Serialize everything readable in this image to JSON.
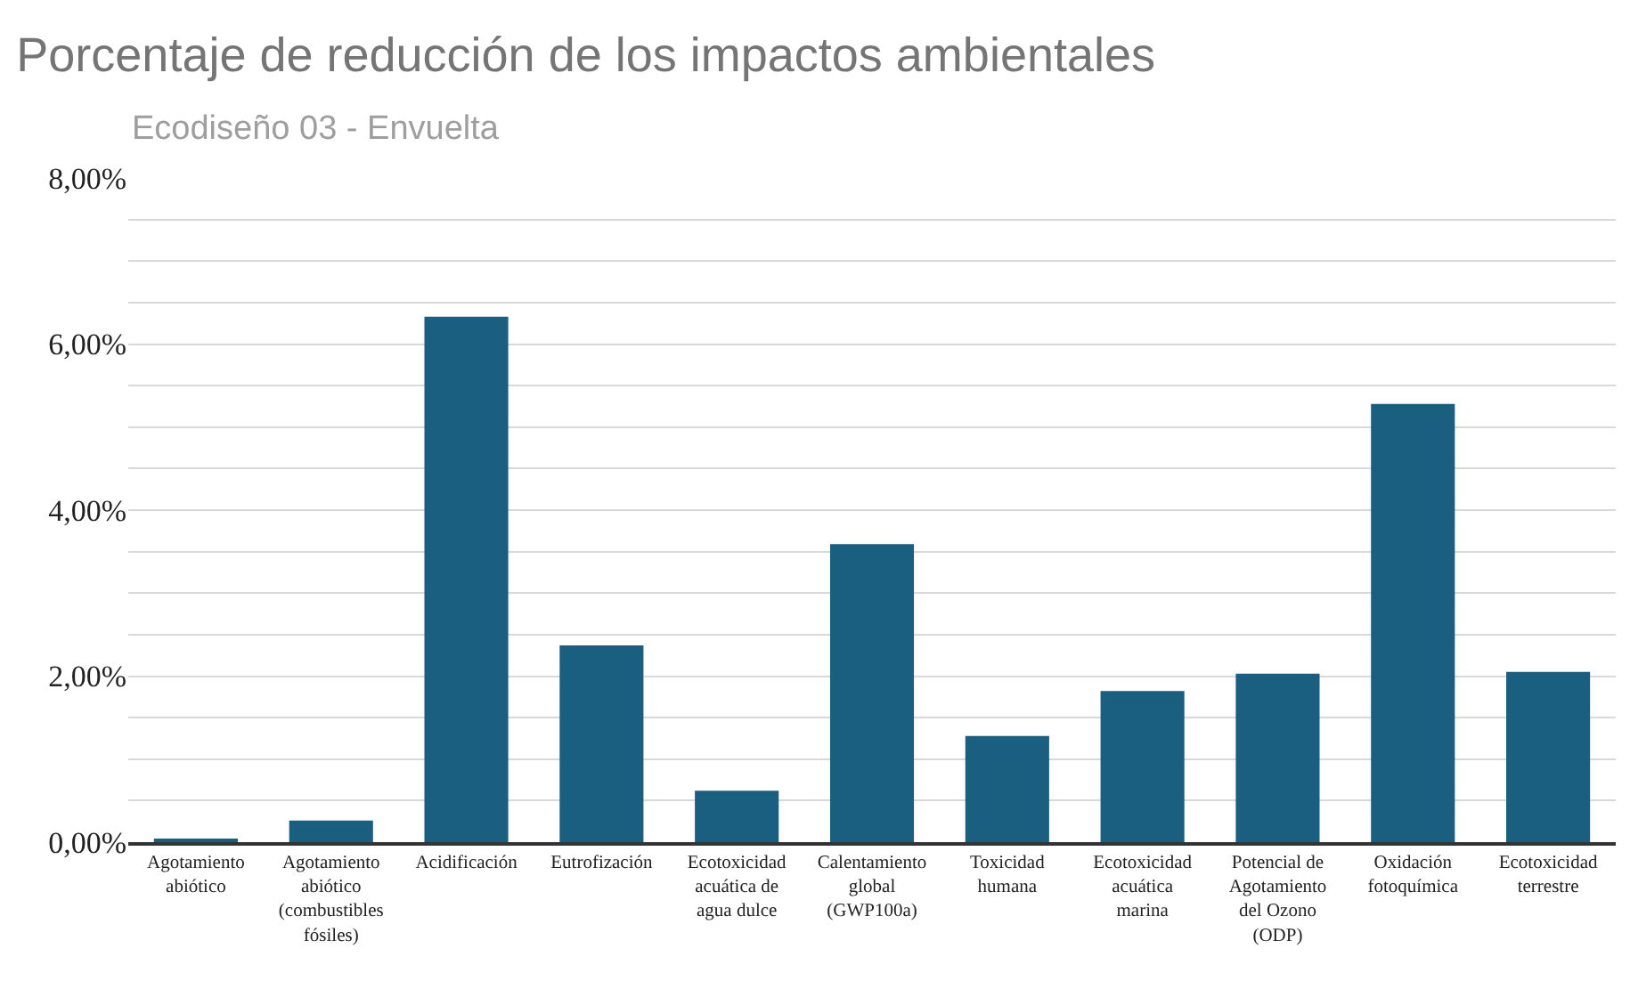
{
  "chart_data": {
    "type": "bar",
    "title": "Porcentaje de reducción de los impactos ambientales",
    "subtitle": "Ecodiseño 03 - Envuelta",
    "categories": [
      "Agotamiento abiótico",
      "Agotamiento abiótico (combustibles fósiles)",
      "Acidificación",
      "Eutrofización",
      "Ecotoxicidad acuática de agua dulce",
      "Calentamiento global (GWP100a)",
      "Toxicidad humana",
      "Ecotoxicidad acuática marina",
      "Potencial de Agotamiento del Ozono (ODP)",
      "Oxidación fotoquímica",
      "Ecotoxicidad terrestre"
    ],
    "values": [
      0.04,
      0.26,
      6.33,
      2.37,
      0.62,
      3.59,
      1.28,
      1.82,
      2.03,
      5.28,
      2.05
    ],
    "color": "#1a5f80",
    "ylim": [
      0,
      8
    ],
    "yticks": [
      {
        "value": 0,
        "label": "0,00%"
      },
      {
        "value": 0.5,
        "label": null
      },
      {
        "value": 1,
        "label": null
      },
      {
        "value": 1.5,
        "label": null
      },
      {
        "value": 2,
        "label": "2,00%"
      },
      {
        "value": 2.5,
        "label": null
      },
      {
        "value": 3,
        "label": null
      },
      {
        "value": 3.5,
        "label": null
      },
      {
        "value": 4,
        "label": "4,00%"
      },
      {
        "value": 4.5,
        "label": null
      },
      {
        "value": 5,
        "label": null
      },
      {
        "value": 5.5,
        "label": null
      },
      {
        "value": 6,
        "label": "6,00%"
      },
      {
        "value": 6.5,
        "label": null
      },
      {
        "value": 7,
        "label": null
      },
      {
        "value": 7.5,
        "label": null
      },
      {
        "value": 8,
        "label": "8,00%"
      }
    ],
    "grid": "y"
  }
}
